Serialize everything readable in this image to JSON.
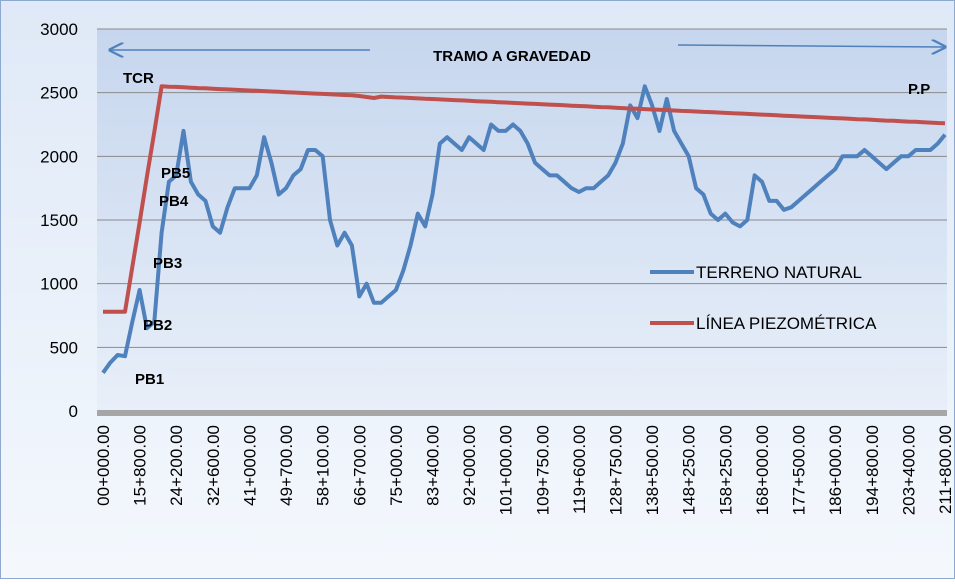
{
  "chart_data": {
    "type": "line",
    "title": "TRAMO A GRAVEDAD",
    "annotations": [
      "TCR",
      "P.P",
      "PB5",
      "PB4",
      "PB3",
      "PB2",
      "PB1"
    ],
    "categories": [
      "00+000.00",
      null,
      null,
      null,
      null,
      "15+800.00",
      null,
      null,
      null,
      null,
      "24+200.00",
      null,
      null,
      null,
      null,
      "32+600.00",
      null,
      null,
      null,
      null,
      "41+000.00",
      null,
      null,
      null,
      null,
      "49+700.00",
      null,
      null,
      null,
      null,
      "58+100.00",
      null,
      null,
      null,
      null,
      "66+700.00",
      null,
      null,
      null,
      null,
      "75+000.00",
      null,
      null,
      null,
      null,
      "83+400.00",
      null,
      null,
      null,
      null,
      "92+000.00",
      null,
      null,
      null,
      null,
      "101+000.00",
      null,
      null,
      null,
      null,
      "109+750.00",
      null,
      null,
      null,
      null,
      "119+600.00",
      null,
      null,
      null,
      null,
      "128+750.00",
      null,
      null,
      null,
      null,
      "138+500.00",
      null,
      null,
      null,
      null,
      "148+250.00",
      null,
      null,
      null,
      null,
      "158+250.00",
      null,
      null,
      null,
      null,
      "168+000.00",
      null,
      null,
      null,
      null,
      "177+500.00",
      null,
      null,
      null,
      null,
      "186+000.00",
      null,
      null,
      null,
      null,
      "194+800.00",
      null,
      null,
      null,
      null,
      "203+400.00",
      null,
      null,
      null,
      null,
      "211+800.00"
    ],
    "series": [
      {
        "name": "TERRENO NATURAL",
        "color": "#4f81bd",
        "values": [
          300,
          380,
          440,
          430,
          700,
          950,
          650,
          700,
          1400,
          1800,
          1850,
          2200,
          1800,
          1700,
          1650,
          1450,
          1400,
          1600,
          1750,
          1750,
          1750,
          1850,
          2150,
          1950,
          1700,
          1750,
          1850,
          1900,
          2050,
          2050,
          2000,
          1500,
          1300,
          1400,
          1300,
          900,
          1000,
          850,
          850,
          900,
          950,
          1100,
          1300,
          1550,
          1450,
          1700,
          2100,
          2150,
          2100,
          2050,
          2150,
          2100,
          2050,
          2250,
          2200,
          2200,
          2250,
          2200,
          2100,
          1950,
          1900,
          1850,
          1850,
          1800,
          1750,
          1720,
          1750,
          1750,
          1800,
          1850,
          1950,
          2100,
          2400,
          2300,
          2550,
          2400,
          2200,
          2450,
          2200,
          2100,
          2000,
          1750,
          1700,
          1550,
          1500,
          1550,
          1480,
          1450,
          1500,
          1850,
          1800,
          1650,
          1650,
          1580,
          1600,
          1650,
          1700,
          1750,
          1800,
          1850,
          1900,
          2000,
          2000,
          2000,
          2050,
          2000,
          1950,
          1900,
          1950,
          2000,
          2000,
          2050,
          2050,
          2050,
          2100,
          2170
        ]
      },
      {
        "name": "LÍNEA PIEZOMÉTRICA",
        "color": "#c0504d",
        "values": [
          780,
          780,
          780,
          780,
          1130,
          1480,
          1840,
          2190,
          2550,
          2547,
          2545,
          2542,
          2539,
          2536,
          2534,
          2531,
          2528,
          2526,
          2523,
          2520,
          2517,
          2515,
          2512,
          2509,
          2507,
          2504,
          2501,
          2498,
          2496,
          2493,
          2490,
          2488,
          2485,
          2482,
          2479,
          2474,
          2466,
          2458,
          2469,
          2466,
          2463,
          2461,
          2458,
          2455,
          2452,
          2450,
          2447,
          2444,
          2442,
          2439,
          2436,
          2433,
          2431,
          2428,
          2425,
          2423,
          2420,
          2417,
          2414,
          2412,
          2409,
          2406,
          2404,
          2401,
          2398,
          2395,
          2393,
          2390,
          2387,
          2385,
          2382,
          2379,
          2376,
          2374,
          2371,
          2368,
          2366,
          2363,
          2360,
          2357,
          2355,
          2352,
          2349,
          2347,
          2344,
          2341,
          2338,
          2336,
          2333,
          2330,
          2328,
          2325,
          2322,
          2319,
          2317,
          2314,
          2311,
          2309,
          2306,
          2303,
          2300,
          2298,
          2295,
          2292,
          2290,
          2287,
          2284,
          2281,
          2279,
          2276,
          2273,
          2271,
          2268,
          2265,
          2262,
          2260
        ]
      }
    ],
    "ylim": [
      0,
      3000
    ],
    "yticks": [
      0,
      500,
      1000,
      1500,
      2000,
      2500,
      3000
    ],
    "grid": true
  }
}
